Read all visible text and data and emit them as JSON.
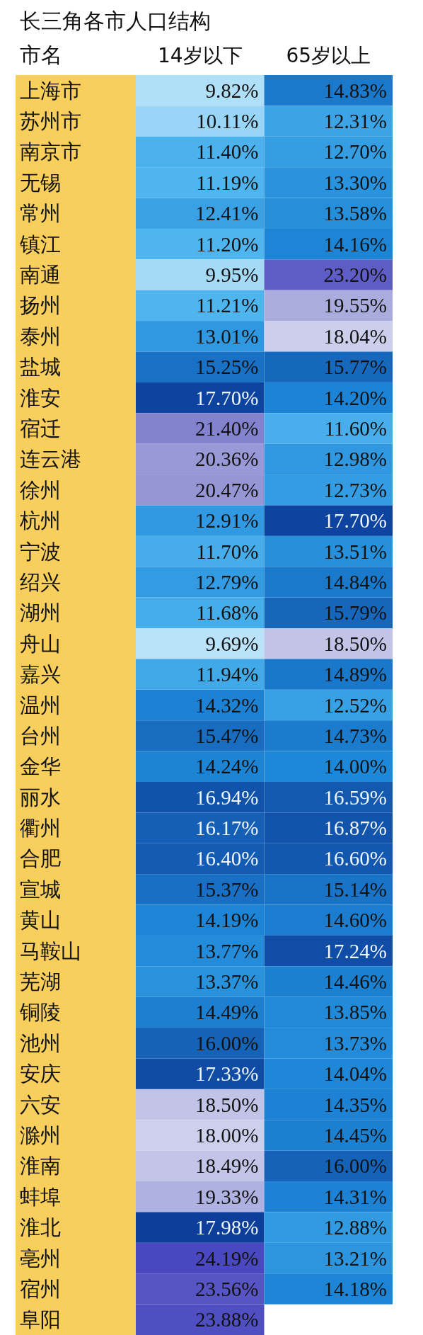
{
  "chart_data": {
    "type": "heatmap",
    "title": "长三角各市人口结构",
    "ylabel": "市名",
    "categories": [
      "14岁以下",
      "65岁以上"
    ],
    "y_categories": [
      "上海市",
      "苏州市",
      "南京市",
      "无锡",
      "常州",
      "镇江",
      "南通",
      "扬州",
      "泰州",
      "盐城",
      "淮安",
      "宿迁",
      "连云港",
      "徐州",
      "杭州",
      "宁波",
      "绍兴",
      "湖州",
      "舟山",
      "嘉兴",
      "温州",
      "台州",
      "金华",
      "丽水",
      "衢州",
      "合肥",
      "宣城",
      "黄山",
      "马鞍山",
      "芜湖",
      "铜陵",
      "池州",
      "安庆",
      "六安",
      "滁州",
      "淮南",
      "蚌埠",
      "淮北",
      "亳州",
      "宿州",
      "阜阳"
    ],
    "cells": [
      [
        9.82,
        14.83
      ],
      [
        10.11,
        12.31
      ],
      [
        11.4,
        12.7
      ],
      [
        11.19,
        13.3
      ],
      [
        12.41,
        13.58
      ],
      [
        11.2,
        14.16
      ],
      [
        9.95,
        23.2
      ],
      [
        11.21,
        19.55
      ],
      [
        13.01,
        18.04
      ],
      [
        15.25,
        15.77
      ],
      [
        17.7,
        14.2
      ],
      [
        21.4,
        11.6
      ],
      [
        20.36,
        12.98
      ],
      [
        20.47,
        12.73
      ],
      [
        12.91,
        17.7
      ],
      [
        11.7,
        13.51
      ],
      [
        12.79,
        14.84
      ],
      [
        11.68,
        15.79
      ],
      [
        9.69,
        18.5
      ],
      [
        11.94,
        14.89
      ],
      [
        14.32,
        12.52
      ],
      [
        15.47,
        14.73
      ],
      [
        14.24,
        14.0
      ],
      [
        16.94,
        16.59
      ],
      [
        16.17,
        16.87
      ],
      [
        16.4,
        16.6
      ],
      [
        15.37,
        15.14
      ],
      [
        14.19,
        14.6
      ],
      [
        13.77,
        17.24
      ],
      [
        13.37,
        14.46
      ],
      [
        14.49,
        13.85
      ],
      [
        16.0,
        13.73
      ],
      [
        17.33,
        14.04
      ],
      [
        18.5,
        14.35
      ],
      [
        18.0,
        14.45
      ],
      [
        18.49,
        16.0
      ],
      [
        19.33,
        14.31
      ],
      [
        17.98,
        12.88
      ],
      [
        24.19,
        13.21
      ],
      [
        23.56,
        14.18
      ],
      [
        23.88,
        null
      ]
    ],
    "cell_labels": [
      [
        "9.82%",
        "14.83%"
      ],
      [
        "10.11%",
        "12.31%"
      ],
      [
        "11.40%",
        "12.70%"
      ],
      [
        "11.19%",
        "13.30%"
      ],
      [
        "12.41%",
        "13.58%"
      ],
      [
        "11.20%",
        "14.16%"
      ],
      [
        "9.95%",
        "23.20%"
      ],
      [
        "11.21%",
        "19.55%"
      ],
      [
        "13.01%",
        "18.04%"
      ],
      [
        "15.25%",
        "15.77%"
      ],
      [
        "17.70%",
        "14.20%"
      ],
      [
        "21.40%",
        "11.60%"
      ],
      [
        "20.36%",
        "12.98%"
      ],
      [
        "20.47%",
        "12.73%"
      ],
      [
        "12.91%",
        "17.70%"
      ],
      [
        "11.70%",
        "13.51%"
      ],
      [
        "12.79%",
        "14.84%"
      ],
      [
        "11.68%",
        "15.79%"
      ],
      [
        "9.69%",
        "18.50%"
      ],
      [
        "11.94%",
        "14.89%"
      ],
      [
        "14.32%",
        "12.52%"
      ],
      [
        "15.47%",
        "14.73%"
      ],
      [
        "14.24%",
        "14.00%"
      ],
      [
        "16.94%",
        "16.59%"
      ],
      [
        "16.17%",
        "16.87%"
      ],
      [
        "16.40%",
        "16.60%"
      ],
      [
        "15.37%",
        "15.14%"
      ],
      [
        "14.19%",
        "14.60%"
      ],
      [
        "13.77%",
        "17.24%"
      ],
      [
        "13.37%",
        "14.46%"
      ],
      [
        "14.49%",
        "13.85%"
      ],
      [
        "16.00%",
        "13.73%"
      ],
      [
        "17.33%",
        "14.04%"
      ],
      [
        "18.50%",
        "14.35%"
      ],
      [
        "18.00%",
        "14.45%"
      ],
      [
        "18.49%",
        "16.00%"
      ],
      [
        "19.33%",
        "14.31%"
      ],
      [
        "17.98%",
        "12.88%"
      ],
      [
        "24.19%",
        "13.21%"
      ],
      [
        "23.56%",
        "14.18%"
      ],
      [
        "23.88%",
        null
      ]
    ]
  }
}
